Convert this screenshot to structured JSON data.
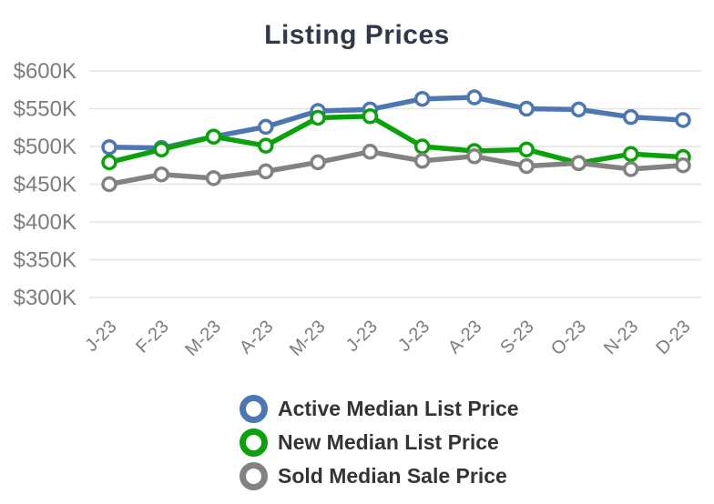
{
  "chart_data": {
    "type": "line",
    "title": "Listing Prices",
    "x": [
      "J-23",
      "F-23",
      "M-23",
      "A-23",
      "M-23",
      "J-23",
      "J-23",
      "A-23",
      "S-23",
      "O-23",
      "N-23",
      "D-23"
    ],
    "series": [
      {
        "name": "Active Median List Price",
        "color": "#4d77b2",
        "values": [
          499,
          498,
          513,
          526,
          547,
          549,
          563,
          565,
          550,
          549,
          539,
          535
        ]
      },
      {
        "name": "New Median List Price",
        "color": "#0ba10b",
        "values": [
          479,
          496,
          513,
          501,
          538,
          540,
          500,
          494,
          496,
          478,
          490,
          486
        ]
      },
      {
        "name": "Sold Median Sale Price",
        "color": "#828282",
        "values": [
          450,
          463,
          458,
          467,
          479,
          493,
          481,
          487,
          474,
          478,
          470,
          475
        ]
      }
    ],
    "y_ticks": [
      "$600K",
      "$550K",
      "$500K",
      "$450K",
      "$400K",
      "$350K",
      "$300K"
    ],
    "y_tick_values": [
      600,
      550,
      500,
      450,
      400,
      350,
      300
    ],
    "ylim": [
      300,
      600
    ],
    "unit": "USD thousands",
    "grid": true,
    "legend_position": "bottom"
  },
  "style_colors": {
    "title": "#323848",
    "axis_labels": "#7d7d7d",
    "gridline": "#e4e4e4",
    "legend_text": "#343434"
  }
}
